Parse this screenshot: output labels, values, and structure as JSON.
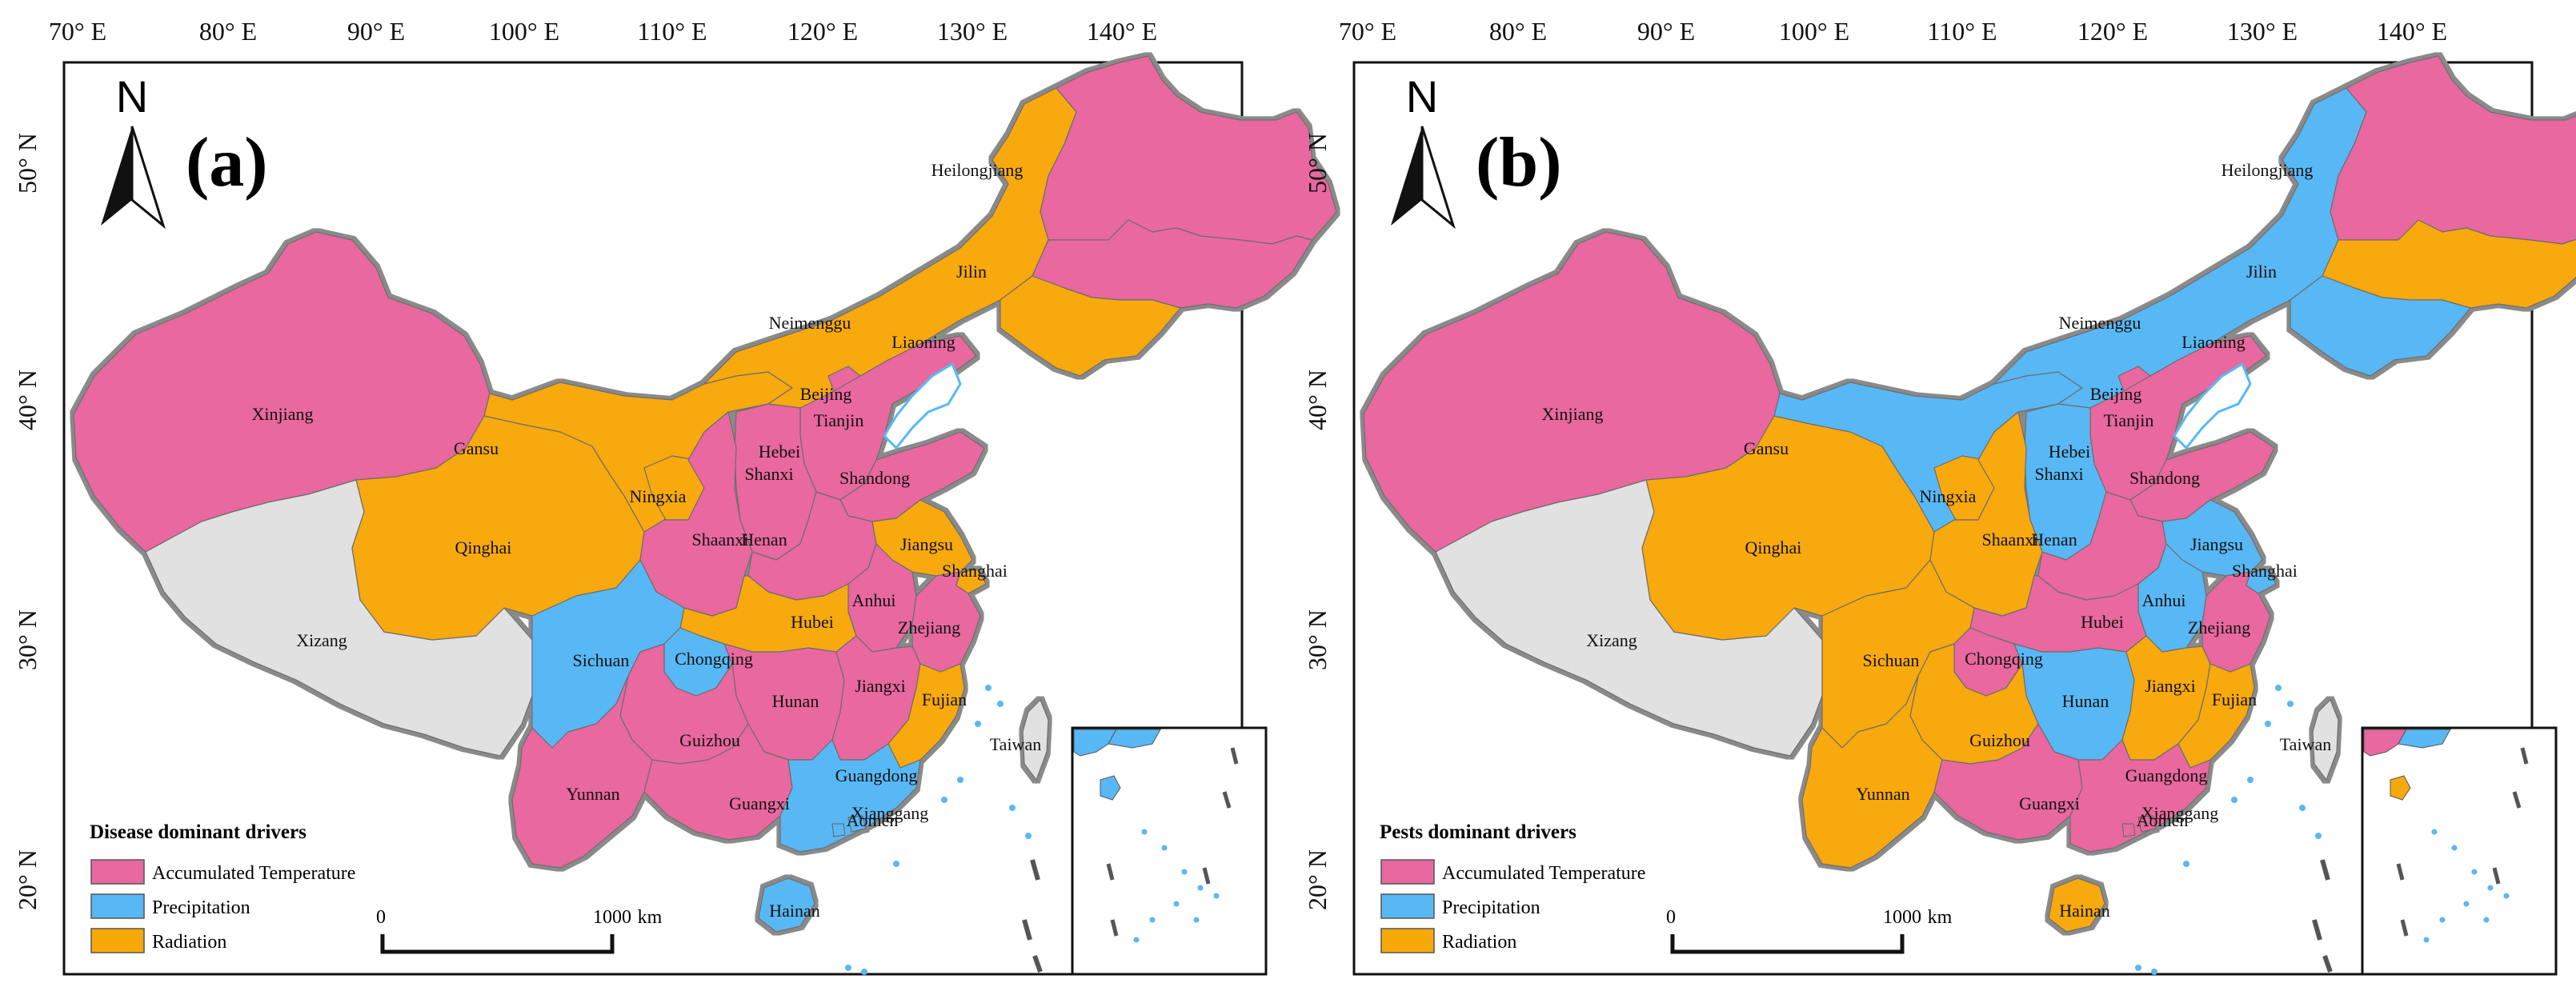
{
  "panels": [
    {
      "id": "a",
      "label": "(a)",
      "north": "N",
      "legend_title": "Disease dominant drivers",
      "assignments": {
        "Xinjiang": "temp",
        "Xizang": "none",
        "Qinghai": "rad",
        "Gansu": "rad",
        "Neimenggu": "rad",
        "Heilongjiang": "temp",
        "Jilin": "temp",
        "Liaoning": "rad",
        "Ningxia": "rad",
        "Shaanxi": "temp",
        "Shanxi": "temp",
        "Hebei": "temp",
        "Beijing": "temp",
        "Tianjin": "rad",
        "Shandong": "temp",
        "Henan": "temp",
        "Jiangsu": "rad",
        "Shanghai": "rad",
        "Anhui": "temp",
        "Hubei": "rad",
        "Zhejiang": "temp",
        "Sichuan": "prec",
        "Chongqing": "prec",
        "Hunan": "temp",
        "Jiangxi": "temp",
        "Fujian": "rad",
        "Guizhou": "temp",
        "Yunnan": "temp",
        "Guangxi": "temp",
        "Guangdong": "prec",
        "Hainan": "prec",
        "Taiwan": "none",
        "Xianggang": "prec",
        "Aomen": "prec"
      }
    },
    {
      "id": "b",
      "label": "(b)",
      "north": "N",
      "legend_title": "Pests dominant drivers",
      "assignments": {
        "Xinjiang": "temp",
        "Xizang": "none",
        "Qinghai": "rad",
        "Gansu": "prec",
        "Neimenggu": "prec",
        "Heilongjiang": "temp",
        "Jilin": "rad",
        "Liaoning": "prec",
        "Ningxia": "rad",
        "Shaanxi": "rad",
        "Shanxi": "prec",
        "Hebei": "temp",
        "Beijing": "temp",
        "Tianjin": "prec",
        "Shandong": "temp",
        "Henan": "temp",
        "Jiangsu": "prec",
        "Shanghai": "prec",
        "Anhui": "prec",
        "Hubei": "temp",
        "Zhejiang": "temp",
        "Sichuan": "rad",
        "Chongqing": "temp",
        "Hunan": "prec",
        "Jiangxi": "rad",
        "Fujian": "rad",
        "Guizhou": "rad",
        "Yunnan": "rad",
        "Guangxi": "temp",
        "Guangdong": "temp",
        "Hainan": "rad",
        "Taiwan": "none",
        "Xianggang": "temp",
        "Aomen": "temp"
      }
    }
  ],
  "province_labels": [
    "Xinjiang",
    "Xizang",
    "Qinghai",
    "Gansu",
    "Neimenggu",
    "Heilongjiang",
    "Jilin",
    "Liaoning",
    "Ningxia",
    "Shaanxi",
    "Shanxi",
    "Hebei",
    "Beijing",
    "Tianjin",
    "Shandong",
    "Henan",
    "Jiangsu",
    "Shanghai",
    "Anhui",
    "Hubei",
    "Zhejiang",
    "Sichuan",
    "Chongqing",
    "Hunan",
    "Jiangxi",
    "Fujian",
    "Guizhou",
    "Yunnan",
    "Guangxi",
    "Guangdong",
    "Xianggang",
    "Aomen",
    "Hainan",
    "Taiwan"
  ],
  "legend": [
    {
      "key": "temp",
      "label": "Accumulated Temperature",
      "color": "#e8689f"
    },
    {
      "key": "prec",
      "label": "Precipitation",
      "color": "#58b8f5"
    },
    {
      "key": "rad",
      "label": "Radiation",
      "color": "#f8a90a"
    }
  ],
  "no_data_color": "#e1e1e1",
  "lon_labels": [
    "70° E",
    "80° E",
    "90° E",
    "100° E",
    "110° E",
    "120° E",
    "130° E",
    "140° E"
  ],
  "lat_labels": [
    "50° N",
    "40° N",
    "30° N",
    "20° N"
  ],
  "scalebar": {
    "start": "0",
    "end": "1000",
    "unit": "km"
  }
}
